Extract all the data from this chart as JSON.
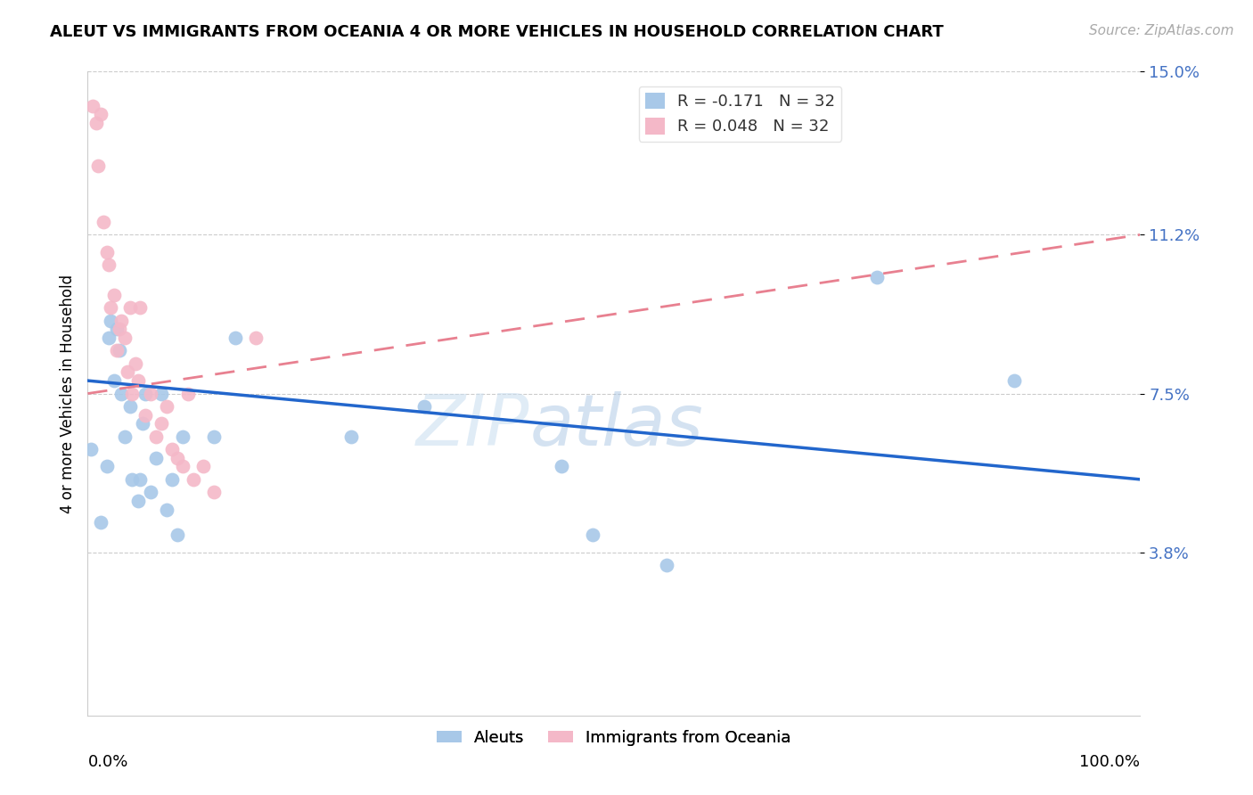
{
  "title": "ALEUT VS IMMIGRANTS FROM OCEANIA 4 OR MORE VEHICLES IN HOUSEHOLD CORRELATION CHART",
  "source": "Source: ZipAtlas.com",
  "ylabel": "4 or more Vehicles in Household",
  "xmin": 0.0,
  "xmax": 100.0,
  "ymin": 0.0,
  "ymax": 15.0,
  "aleut_R": -0.171,
  "aleut_N": 32,
  "oceania_R": 0.048,
  "oceania_N": 32,
  "aleut_color": "#a8c8e8",
  "oceania_color": "#f4b8c8",
  "aleut_line_color": "#2266cc",
  "oceania_line_color": "#e88090",
  "legend_label_aleut": "Aleuts",
  "legend_label_oceania": "Immigrants from Oceania",
  "aleut_x": [
    0.3,
    1.2,
    1.8,
    2.0,
    2.2,
    2.5,
    2.8,
    3.0,
    3.2,
    3.5,
    4.0,
    4.2,
    4.8,
    5.0,
    5.2,
    5.5,
    6.0,
    6.5,
    7.0,
    7.5,
    8.0,
    8.5,
    9.0,
    12.0,
    14.0,
    25.0,
    32.0,
    45.0,
    48.0,
    55.0,
    75.0,
    88.0
  ],
  "aleut_y": [
    6.2,
    4.5,
    5.8,
    8.8,
    9.2,
    7.8,
    9.0,
    8.5,
    7.5,
    6.5,
    7.2,
    5.5,
    5.0,
    5.5,
    6.8,
    7.5,
    5.2,
    6.0,
    7.5,
    4.8,
    5.5,
    4.2,
    6.5,
    6.5,
    8.8,
    6.5,
    7.2,
    5.8,
    4.2,
    3.5,
    10.2,
    7.8
  ],
  "oceania_x": [
    0.5,
    0.8,
    1.0,
    1.2,
    1.5,
    1.8,
    2.0,
    2.2,
    2.5,
    2.8,
    3.0,
    3.2,
    3.5,
    3.8,
    4.0,
    4.2,
    4.5,
    4.8,
    5.0,
    5.5,
    6.0,
    6.5,
    7.0,
    7.5,
    8.0,
    8.5,
    9.0,
    9.5,
    10.0,
    11.0,
    12.0,
    16.0
  ],
  "oceania_y": [
    14.2,
    13.8,
    12.8,
    14.0,
    11.5,
    10.8,
    10.5,
    9.5,
    9.8,
    8.5,
    9.0,
    9.2,
    8.8,
    8.0,
    9.5,
    7.5,
    8.2,
    7.8,
    9.5,
    7.0,
    7.5,
    6.5,
    6.8,
    7.2,
    6.2,
    6.0,
    5.8,
    7.5,
    5.5,
    5.8,
    5.2,
    8.8
  ],
  "aleut_line_x0": 0.0,
  "aleut_line_y0": 7.8,
  "aleut_line_x1": 100.0,
  "aleut_line_y1": 5.5,
  "oceania_line_x0": 0.0,
  "oceania_line_y0": 7.5,
  "oceania_line_x1": 100.0,
  "oceania_line_y1": 11.2,
  "ytick_vals": [
    3.8,
    7.5,
    11.2,
    15.0
  ],
  "grid_color": "#cccccc",
  "spine_color": "#cccccc",
  "title_fontsize": 13,
  "tick_fontsize": 13,
  "source_fontsize": 11,
  "ylabel_fontsize": 12,
  "legend_fontsize": 13,
  "watermark_text": "ZIPatlas",
  "watermark_color": "#d0e4f4",
  "ytick_color": "#4472c4"
}
